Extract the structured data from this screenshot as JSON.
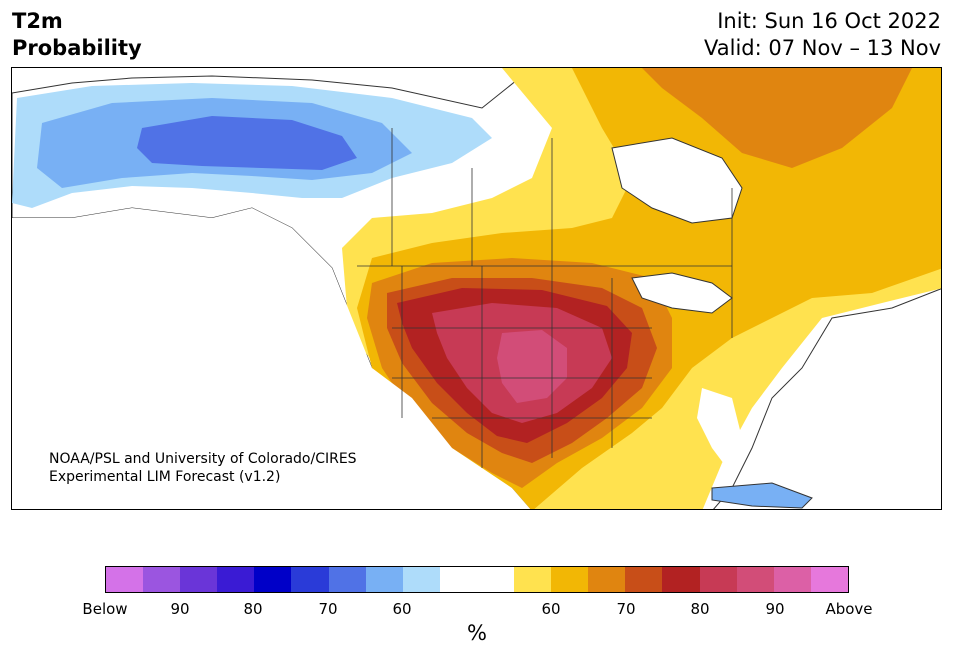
{
  "header": {
    "title_line1": "T2m",
    "title_line2": "Probability",
    "init": "Init: Sun 16 Oct 2022",
    "valid": "Valid: 07 Nov – 13 Nov"
  },
  "credit": {
    "line1": "NOAA/PSL and University of Colorado/CIRES",
    "line2": "Experimental LIM Forecast (v1.2)"
  },
  "colorbar": {
    "unit": "%",
    "colors": [
      "#d472e8",
      "#9b55e0",
      "#6a35d8",
      "#3a1bd4",
      "#0000c8",
      "#2a3bd8",
      "#5072e6",
      "#78b0f4",
      "#aedcfa",
      "#ffffff",
      "#ffe24f",
      "#f2b705",
      "#e08510",
      "#c84e18",
      "#b22222",
      "#c73a55",
      "#d24d78",
      "#dc60a6",
      "#e678dc"
    ],
    "tick_labels": [
      "Below",
      "90",
      "80",
      "70",
      "60",
      "60",
      "70",
      "80",
      "90",
      "Above"
    ]
  },
  "map": {
    "region": "North America",
    "palette": {
      "cold_60": "#aedcfa",
      "cold_70": "#78b0f4",
      "cold_80": "#5072e6",
      "warm_60": "#ffe24f",
      "warm_70": "#f2b705",
      "warm_80": "#e08510",
      "warm_90": "#c84e18",
      "warm_95": "#b22222",
      "warm_97": "#c73a55",
      "warm_98": "#d24d78",
      "warm_99": "#dc60a6",
      "ocean": "#ffffff"
    }
  }
}
